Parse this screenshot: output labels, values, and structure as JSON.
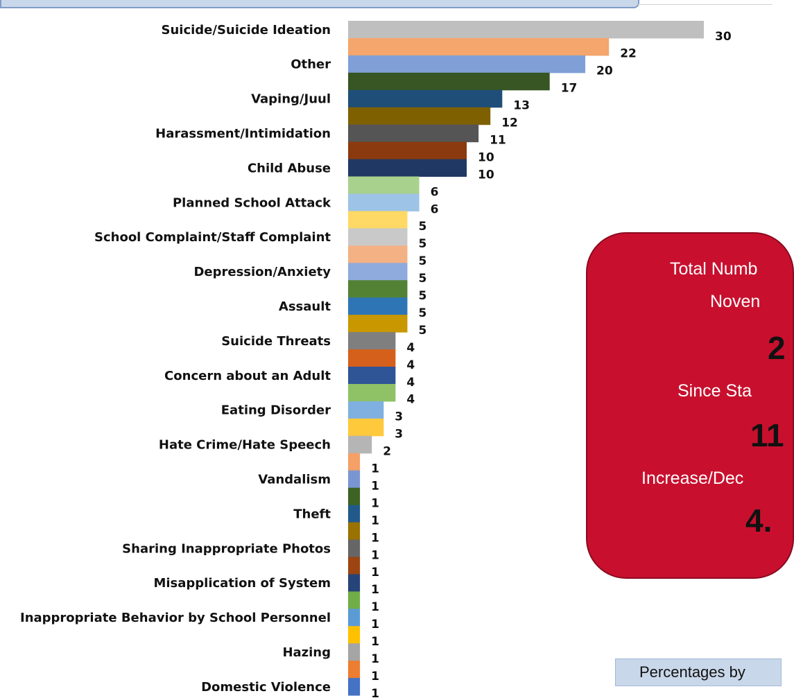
{
  "chart_data": {
    "type": "bar",
    "orientation": "horizontal",
    "categories": [
      "Suicide/Suicide Ideation",
      "",
      "Other",
      "",
      "Vaping/Juul",
      "",
      "Harassment/Intimidation",
      "",
      "Child Abuse",
      "",
      "Planned School Attack",
      "",
      "School Complaint/Staff Complaint",
      "",
      "Depression/Anxiety",
      "",
      "Assault",
      "",
      "Suicide Threats",
      "",
      "Concern about an Adult",
      "",
      "Eating Disorder",
      "",
      "Hate Crime/Hate Speech",
      "",
      "Vandalism",
      "",
      "Theft",
      "",
      "Sharing Inappropriate Photos",
      "",
      "Misapplication of System",
      "",
      "Inappropriate Behavior by School Personnel",
      "",
      "Hazing",
      "",
      "Domestic Violence"
    ],
    "values": [
      30,
      22,
      20,
      17,
      13,
      12,
      11,
      10,
      10,
      6,
      6,
      5,
      5,
      5,
      5,
      5,
      5,
      5,
      4,
      4,
      4,
      4,
      3,
      3,
      2,
      1,
      1,
      1,
      1,
      1,
      1,
      1,
      1,
      1,
      1,
      1,
      1,
      1,
      1
    ],
    "colors": [
      "#bfbfbf",
      "#f4a66c",
      "#7f9fd6",
      "#375623",
      "#1f4e79",
      "#7f6000",
      "#555555",
      "#8b3a0f",
      "#203864",
      "#a9d18e",
      "#9dc3e6",
      "#ffd966",
      "#c9c9c9",
      "#f4b183",
      "#8faadc",
      "#548235",
      "#2e75b6",
      "#c99700",
      "#7f7f7f",
      "#d5601b",
      "#2f5597",
      "#8fc266",
      "#7fb0e0",
      "#ffc93c",
      "#b5b5b5",
      "#f4a066",
      "#7a96d2",
      "#3d6324",
      "#215a8a",
      "#9a7200",
      "#666666",
      "#9c4512",
      "#264478",
      "#70ad47",
      "#5b9bd5",
      "#ffc000",
      "#a5a5a5",
      "#ed7d31",
      "#4472c4"
    ],
    "xlim": [
      0,
      30
    ],
    "grid": false,
    "legend": "none",
    "title": "",
    "xlabel": "",
    "ylabel": ""
  },
  "stats_box": {
    "line1": "Total Numb",
    "line2": "Noven",
    "value1": "2",
    "line3": "Since Sta",
    "value2": "11",
    "line4": "Increase/Dec",
    "value3": "4."
  },
  "percentages_button": "Percentages by"
}
